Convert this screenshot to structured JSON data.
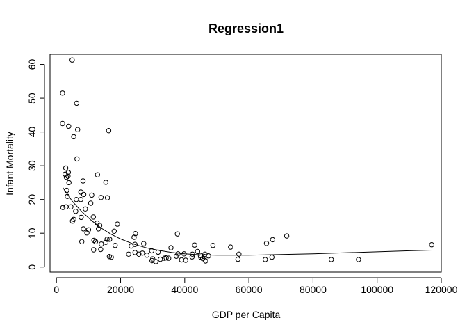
{
  "chart_data": {
    "type": "scatter",
    "title": "Regression1",
    "xlabel": "GDP per Capita",
    "ylabel": "Infant Mortality",
    "xlim": [
      -2000,
      120000
    ],
    "ylim": [
      -1.5,
      63
    ],
    "xticks": [
      0,
      20000,
      40000,
      60000,
      80000,
      100000,
      120000
    ],
    "yticks": [
      0,
      10,
      20,
      30,
      40,
      50,
      60
    ],
    "grid": false,
    "legend": "none",
    "points": [
      [
        1900,
        51.5
      ],
      [
        1900,
        42.5
      ],
      [
        4900,
        61.3
      ],
      [
        6300,
        48.5
      ],
      [
        6600,
        40.7
      ],
      [
        3800,
        41.7
      ],
      [
        5400,
        38.6
      ],
      [
        16300,
        40.4
      ],
      [
        6400,
        32.0
      ],
      [
        2900,
        29.3
      ],
      [
        3100,
        26.6
      ],
      [
        2700,
        27.5
      ],
      [
        3700,
        28.0
      ],
      [
        3600,
        26.9
      ],
      [
        3900,
        25.0
      ],
      [
        12800,
        27.3
      ],
      [
        8300,
        25.5
      ],
      [
        15400,
        25.1
      ],
      [
        3200,
        22.7
      ],
      [
        7600,
        22.2
      ],
      [
        8500,
        21.5
      ],
      [
        11000,
        21.3
      ],
      [
        13900,
        20.6
      ],
      [
        15900,
        20.5
      ],
      [
        3400,
        20.9
      ],
      [
        6200,
        20.0
      ],
      [
        7600,
        20.0
      ],
      [
        10700,
        18.9
      ],
      [
        2000,
        17.6
      ],
      [
        3000,
        17.8
      ],
      [
        4500,
        17.8
      ],
      [
        6000,
        16.5
      ],
      [
        9000,
        17.2
      ],
      [
        7700,
        14.7
      ],
      [
        11500,
        14.8
      ],
      [
        5000,
        13.6
      ],
      [
        5400,
        14.1
      ],
      [
        12700,
        13.0
      ],
      [
        13500,
        12.3
      ],
      [
        19000,
        12.7
      ],
      [
        8400,
        11.3
      ],
      [
        10000,
        11.0
      ],
      [
        13100,
        11.3
      ],
      [
        18000,
        10.6
      ],
      [
        9500,
        10.1
      ],
      [
        24600,
        9.9
      ],
      [
        37700,
        9.8
      ],
      [
        71800,
        9.2
      ],
      [
        24200,
        8.8
      ],
      [
        15800,
        8.2
      ],
      [
        16600,
        8.2
      ],
      [
        11700,
        7.9
      ],
      [
        12200,
        7.5
      ],
      [
        15400,
        7.3
      ],
      [
        27200,
        6.9
      ],
      [
        7900,
        7.5
      ],
      [
        14000,
        6.8
      ],
      [
        18300,
        6.4
      ],
      [
        24500,
        6.7
      ],
      [
        23300,
        6.2
      ],
      [
        43100,
        6.5
      ],
      [
        48800,
        6.4
      ],
      [
        54300,
        5.9
      ],
      [
        65500,
        7.0
      ],
      [
        67400,
        8.1
      ],
      [
        117000,
        6.6
      ],
      [
        11600,
        5.1
      ],
      [
        13800,
        5.2
      ],
      [
        35700,
        5.7
      ],
      [
        29700,
        4.8
      ],
      [
        24500,
        4.3
      ],
      [
        26800,
        4.1
      ],
      [
        31700,
        4.4
      ],
      [
        22500,
        3.8
      ],
      [
        16500,
        3.1
      ],
      [
        17100,
        2.9
      ],
      [
        25700,
        3.8
      ],
      [
        28200,
        3.5
      ],
      [
        37900,
        3.9
      ],
      [
        39800,
        3.9
      ],
      [
        42400,
        3.8
      ],
      [
        44900,
        3.4
      ],
      [
        46300,
        3.8
      ],
      [
        47400,
        3.3
      ],
      [
        56900,
        3.8
      ],
      [
        67200,
        2.9
      ],
      [
        30000,
        2.4
      ],
      [
        33700,
        2.6
      ],
      [
        35000,
        2.6
      ],
      [
        34200,
        2.7
      ],
      [
        32400,
        2.3
      ],
      [
        29800,
        1.9
      ],
      [
        39000,
        2.1
      ],
      [
        40300,
        2.0
      ],
      [
        45600,
        2.5
      ],
      [
        46500,
        1.8
      ],
      [
        56600,
        2.3
      ],
      [
        65100,
        2.2
      ],
      [
        85700,
        2.2
      ],
      [
        94200,
        2.2
      ],
      [
        31000,
        1.6
      ],
      [
        37400,
        3.2
      ],
      [
        42300,
        3.0
      ],
      [
        44000,
        4.6
      ],
      [
        45000,
        2.9
      ],
      [
        46100,
        3.1
      ]
    ],
    "fit_line": [
      [
        2000,
        23.5
      ],
      [
        5000,
        19.4
      ],
      [
        8000,
        16.3
      ],
      [
        11000,
        13.7
      ],
      [
        14000,
        11.5
      ],
      [
        17000,
        9.7
      ],
      [
        20000,
        8.3
      ],
      [
        24000,
        6.8
      ],
      [
        28000,
        5.7
      ],
      [
        32000,
        4.9
      ],
      [
        36000,
        4.3
      ],
      [
        40000,
        3.9
      ],
      [
        45000,
        3.6
      ],
      [
        50000,
        3.5
      ],
      [
        60000,
        3.5
      ],
      [
        70000,
        3.7
      ],
      [
        80000,
        3.9
      ],
      [
        90000,
        4.2
      ],
      [
        100000,
        4.5
      ],
      [
        110000,
        4.8
      ],
      [
        117000,
        5.0
      ]
    ]
  }
}
